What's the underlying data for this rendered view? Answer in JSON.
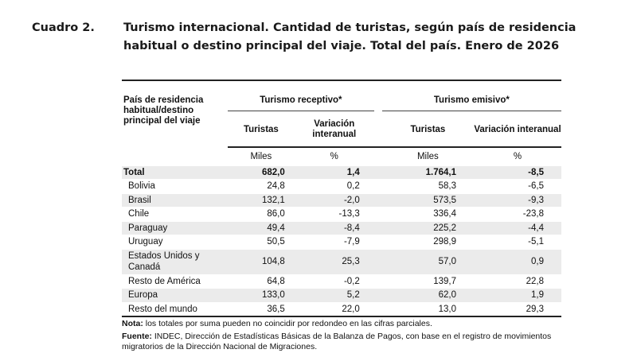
{
  "header": {
    "number": "Cuadro 2.",
    "title": "Turismo internacional. Cantidad de turistas, según país de residencia habitual o destino principal del viaje. Total del país. Enero de 2026"
  },
  "table": {
    "row_header": "País de residencia habitual/destino principal del viaje",
    "groups": [
      "Turismo receptivo*",
      "Turismo emisivo*"
    ],
    "subcols": [
      "Turistas",
      "Variación interanual",
      "Turistas",
      "Variación interanual"
    ],
    "units": [
      "Miles",
      "%",
      "Miles",
      "%"
    ],
    "rows": [
      {
        "name": "Total",
        "values": [
          "682,0",
          "1,4",
          "1.764,1",
          "-8,5"
        ]
      },
      {
        "name": "Bolivia",
        "values": [
          "24,8",
          "0,2",
          "58,3",
          "-6,5"
        ]
      },
      {
        "name": "Brasil",
        "values": [
          "132,1",
          "-2,0",
          "573,5",
          "-9,3"
        ]
      },
      {
        "name": "Chile",
        "values": [
          "86,0",
          "-13,3",
          "336,4",
          "-23,8"
        ]
      },
      {
        "name": "Paraguay",
        "values": [
          "49,4",
          "-8,4",
          "225,2",
          "-4,4"
        ]
      },
      {
        "name": "Uruguay",
        "values": [
          "50,5",
          "-7,9",
          "298,9",
          "-5,1"
        ]
      },
      {
        "name": "Estados Unidos y Canadá",
        "values": [
          "104,8",
          "25,3",
          "57,0",
          "0,9"
        ]
      },
      {
        "name": "Resto de América",
        "values": [
          "64,8",
          "-0,2",
          "139,7",
          "22,8"
        ]
      },
      {
        "name": "Europa",
        "values": [
          "133,0",
          "5,2",
          "62,0",
          "1,9"
        ]
      },
      {
        "name": "Resto del mundo",
        "values": [
          "36,5",
          "22,0",
          "13,0",
          "29,3"
        ]
      }
    ]
  },
  "notes": {
    "nota_label": "Nota:",
    "nota": " los totales por suma pueden no coincidir por redondeo en las cifras parciales.",
    "fuente_label": "Fuente:",
    "fuente": " INDEC, Dirección de Estadísticas Básicas de la Balanza de Pagos, con base en el registro de movimientos migratorios de la Dirección Nacional de Migraciones."
  }
}
